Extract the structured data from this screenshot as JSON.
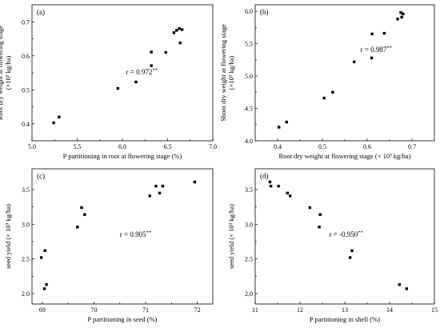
{
  "chart_data": [
    {
      "type": "scatter",
      "tag": "(a)",
      "xlabel": "P partitioning in root at flowering stage (%)",
      "ylabel_lines": [
        "Root dry weight at flowering stage",
        "(×10³ kg/ha)"
      ],
      "annotation": {
        "prefix": "r = ",
        "value": "0.972",
        "sig": "**",
        "x": 6.04,
        "y": 0.545
      },
      "xlim": [
        5.0,
        7.0
      ],
      "ylim": [
        0.35,
        0.75
      ],
      "xticks": [
        5.0,
        5.5,
        6.0,
        6.5,
        7.0
      ],
      "xtick_labels": [
        "5.0",
        "5.5",
        "6.0",
        "6.5",
        "7.0"
      ],
      "yticks": [
        0.4,
        0.5,
        0.6,
        0.7
      ],
      "ytick_labels": [
        "0.4",
        "0.5",
        "0.6",
        "0.7"
      ],
      "points": [
        {
          "x": 5.24,
          "y": 0.403
        },
        {
          "x": 5.3,
          "y": 0.42
        },
        {
          "x": 5.95,
          "y": 0.504
        },
        {
          "x": 6.15,
          "y": 0.523
        },
        {
          "x": 6.32,
          "y": 0.571
        },
        {
          "x": 6.32,
          "y": 0.611
        },
        {
          "x": 6.48,
          "y": 0.61
        },
        {
          "x": 6.57,
          "y": 0.668
        },
        {
          "x": 6.6,
          "y": 0.675
        },
        {
          "x": 6.63,
          "y": 0.68
        },
        {
          "x": 6.64,
          "y": 0.638
        },
        {
          "x": 6.66,
          "y": 0.677
        }
      ]
    },
    {
      "type": "scatter",
      "tag": "(b)",
      "xlabel": "Root dry weight at flowering stage (× 10³ kg/ha)",
      "ylabel_lines": [
        "Shoot dry weight at flowering stage",
        "(×10³ kg/ha)"
      ],
      "annotation": {
        "prefix": "r = ",
        "value": "0.987",
        "sig": "**",
        "x": 0.585,
        "y": 5.37
      },
      "xlim": [
        0.35,
        0.75
      ],
      "ylim": [
        4.0,
        6.1
      ],
      "xticks": [
        0.4,
        0.5,
        0.6,
        0.7
      ],
      "xtick_labels": [
        "0.4",
        "0.5",
        "0.6",
        "0.7"
      ],
      "yticks": [
        4.0,
        4.5,
        5.0,
        5.5,
        6.0
      ],
      "ytick_labels": [
        "4.0",
        "4.5",
        "5.0",
        "5.5",
        "6.0"
      ],
      "points": [
        {
          "x": 0.403,
          "y": 4.21
        },
        {
          "x": 0.42,
          "y": 4.29
        },
        {
          "x": 0.504,
          "y": 4.66
        },
        {
          "x": 0.523,
          "y": 4.75
        },
        {
          "x": 0.571,
          "y": 5.22
        },
        {
          "x": 0.61,
          "y": 5.28
        },
        {
          "x": 0.611,
          "y": 5.65
        },
        {
          "x": 0.638,
          "y": 5.66
        },
        {
          "x": 0.668,
          "y": 5.88
        },
        {
          "x": 0.675,
          "y": 5.98
        },
        {
          "x": 0.677,
          "y": 5.91
        },
        {
          "x": 0.68,
          "y": 5.96
        }
      ]
    },
    {
      "type": "scatter",
      "tag": "(c)",
      "xlabel": "P partitioning in seed (%)",
      "ylabel_lines": [
        "seed yield (× 10³ kg/ha)"
      ],
      "annotation": {
        "prefix": "r = ",
        "value": "0.905",
        "sig": "**",
        "x": 70.5,
        "y": 2.82
      },
      "xlim": [
        68.8,
        72.3
      ],
      "ylim": [
        1.85,
        3.8
      ],
      "xticks": [
        69,
        70,
        71,
        72
      ],
      "xtick_labels": [
        "69",
        "70",
        "71",
        "72"
      ],
      "yticks": [
        2.0,
        2.5,
        3.0,
        3.5
      ],
      "ytick_labels": [
        "2.0",
        "2.5",
        "3.0",
        "3.5"
      ],
      "points": [
        {
          "x": 68.98,
          "y": 2.52
        },
        {
          "x": 69.04,
          "y": 2.07
        },
        {
          "x": 69.05,
          "y": 2.62
        },
        {
          "x": 69.08,
          "y": 2.13
        },
        {
          "x": 69.68,
          "y": 2.96
        },
        {
          "x": 69.76,
          "y": 3.24
        },
        {
          "x": 69.82,
          "y": 3.14
        },
        {
          "x": 71.08,
          "y": 3.41
        },
        {
          "x": 71.2,
          "y": 3.55
        },
        {
          "x": 71.27,
          "y": 3.45
        },
        {
          "x": 71.33,
          "y": 3.55
        },
        {
          "x": 71.95,
          "y": 3.61
        }
      ]
    },
    {
      "type": "scatter",
      "tag": "(d)",
      "xlabel": "P partitioning in shell (%)",
      "ylabel_lines": [
        "seed yield (× 10³ kg/ha)"
      ],
      "annotation": {
        "prefix": "r = ",
        "value": "-0.950",
        "sig": "**",
        "x": 12.65,
        "y": 2.82
      },
      "xlim": [
        11,
        15
      ],
      "ylim": [
        1.85,
        3.8
      ],
      "xticks": [
        11,
        12,
        13,
        14,
        15
      ],
      "xtick_labels": [
        "11",
        "12",
        "13",
        "14",
        "15"
      ],
      "yticks": [
        2.0,
        2.5,
        3.0,
        3.5
      ],
      "ytick_labels": [
        "2.0",
        "2.5",
        "3.0",
        "3.5"
      ],
      "points": [
        {
          "x": 11.33,
          "y": 3.61
        },
        {
          "x": 11.35,
          "y": 3.55
        },
        {
          "x": 11.52,
          "y": 3.55
        },
        {
          "x": 11.72,
          "y": 3.45
        },
        {
          "x": 11.78,
          "y": 3.41
        },
        {
          "x": 12.22,
          "y": 3.24
        },
        {
          "x": 12.45,
          "y": 3.14
        },
        {
          "x": 12.43,
          "y": 2.96
        },
        {
          "x": 13.12,
          "y": 2.52
        },
        {
          "x": 13.16,
          "y": 2.62
        },
        {
          "x": 14.22,
          "y": 2.13
        },
        {
          "x": 14.38,
          "y": 2.07
        }
      ]
    }
  ]
}
